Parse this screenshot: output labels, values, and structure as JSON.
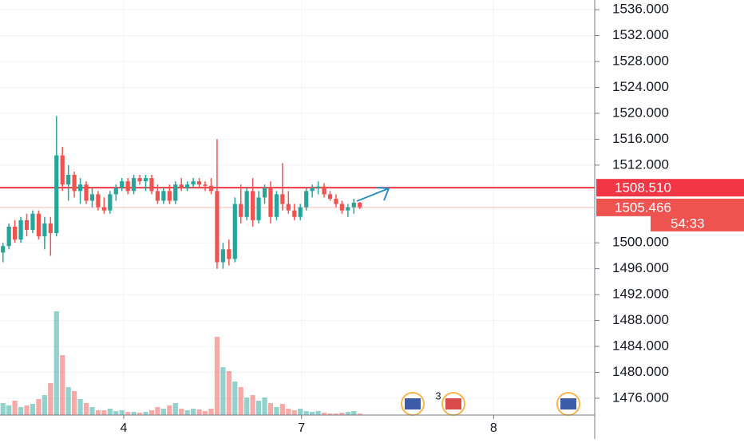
{
  "chart_data": {
    "type": "candlestick",
    "up_color": "#26a69a",
    "down_color": "#ef5350",
    "x": [
      0,
      1,
      2,
      3,
      4,
      5,
      6,
      7,
      8,
      9,
      10,
      11,
      12,
      13,
      14,
      15,
      16,
      17,
      18,
      19,
      20,
      21,
      22,
      23,
      24,
      25,
      26,
      27,
      28,
      29,
      30,
      31,
      32,
      33,
      34,
      35,
      36,
      37,
      38,
      39,
      40,
      41,
      42,
      43,
      44,
      45,
      46,
      47,
      48,
      49,
      50,
      51,
      52,
      53,
      54,
      55,
      56,
      57,
      58,
      59,
      60
    ],
    "open": [
      1498.5,
      1499.5,
      1502.5,
      1500.5,
      1503.5,
      1502,
      1504.5,
      1501,
      1503,
      1501.5,
      1513.5,
      1509,
      1510.5,
      1508,
      1509,
      1506.5,
      1507.5,
      1505.5,
      1505,
      1507.5,
      1508.5,
      1509.5,
      1508,
      1510,
      1509.5,
      1510,
      1508,
      1506.5,
      1508,
      1506.5,
      1509,
      1508.5,
      1509,
      1509.5,
      1509,
      1508.8,
      1508,
      1497,
      1499,
      1497.5,
      1506,
      1504,
      1508,
      1503.5,
      1507,
      1508.5,
      1504,
      1507.5,
      1506,
      1505,
      1504,
      1505.5,
      1508,
      1508.5,
      1508.7,
      1507.5,
      1506.8,
      1506,
      1505,
      1505.5,
      1506.2
    ],
    "high": [
      1500,
      1503,
      1503.5,
      1504,
      1504.5,
      1505,
      1505,
      1504,
      1504,
      1519.6,
      1514.8,
      1512,
      1511,
      1510,
      1509.5,
      1508.5,
      1508,
      1507,
      1508,
      1509,
      1510,
      1510,
      1510.5,
      1510.5,
      1510.5,
      1510.5,
      1509,
      1508.5,
      1509,
      1509.5,
      1510,
      1509.5,
      1510,
      1510,
      1509.5,
      1510,
      1516,
      1500,
      1500.5,
      1507,
      1509,
      1508.5,
      1510,
      1508,
      1509,
      1509.5,
      1508,
      1512.3,
      1508,
      1506,
      1506,
      1508.5,
      1509,
      1509.5,
      1509.2,
      1508,
      1507.5,
      1506.5,
      1506,
      1506.8,
      1506.3
    ],
    "low": [
      1497,
      1499,
      1500,
      1500,
      1501,
      1501.5,
      1500.5,
      1499,
      1498,
      1501,
      1508,
      1506.5,
      1507,
      1506,
      1506,
      1505.5,
      1505,
      1504.5,
      1504.5,
      1506.5,
      1508,
      1507.5,
      1507.5,
      1509,
      1508,
      1507.5,
      1506,
      1506,
      1506,
      1506,
      1508,
      1508,
      1508.5,
      1508.5,
      1508,
      1507.5,
      1496,
      1496,
      1496.5,
      1497,
      1503,
      1503.5,
      1502.5,
      1503,
      1506,
      1503,
      1503.5,
      1505,
      1504.5,
      1503.5,
      1503.5,
      1505,
      1507,
      1507.5,
      1507,
      1506.5,
      1505.5,
      1504.5,
      1504,
      1504.5,
      1505.2
    ],
    "close": [
      1499.5,
      1502.5,
      1500.5,
      1503.5,
      1502,
      1504.5,
      1501,
      1503,
      1501.5,
      1513.5,
      1509,
      1510.5,
      1508,
      1509,
      1506.5,
      1507.5,
      1505.5,
      1505,
      1507.5,
      1508.5,
      1509.5,
      1508,
      1510,
      1509.5,
      1510,
      1508,
      1506.5,
      1508,
      1506.5,
      1509,
      1508.5,
      1509,
      1509.5,
      1509,
      1508.8,
      1508,
      1497,
      1499,
      1497.5,
      1506,
      1504,
      1508,
      1503.5,
      1507,
      1508.5,
      1504,
      1507.5,
      1506,
      1505,
      1504,
      1505.5,
      1508,
      1508.5,
      1508.7,
      1507.5,
      1506.8,
      1506,
      1505,
      1505.5,
      1506.2,
      1505.466
    ],
    "volume": [
      15,
      12,
      18,
      10,
      12,
      14,
      20,
      25,
      40,
      130,
      75,
      35,
      30,
      20,
      15,
      10,
      6,
      6,
      8,
      5,
      6,
      4,
      4,
      3,
      4,
      6,
      10,
      8,
      12,
      15,
      8,
      6,
      8,
      7,
      5,
      8,
      98,
      60,
      55,
      42,
      35,
      22,
      25,
      18,
      22,
      15,
      10,
      14,
      8,
      6,
      8,
      5,
      4,
      5,
      3,
      2,
      2,
      3,
      4,
      5,
      2
    ],
    "volume_lim": [
      0,
      160
    ],
    "xlim": [
      -0.5,
      99.5
    ],
    "xticks": [
      {
        "value": 20.3,
        "label": "4"
      },
      {
        "value": 50.2,
        "label": "7"
      },
      {
        "value": 82.5,
        "label": "8"
      }
    ],
    "ylim": [
      1473.4,
      1537.5
    ],
    "yticks": [
      {
        "value": 1536,
        "label": "1536.000"
      },
      {
        "value": 1532,
        "label": "1532.000"
      },
      {
        "value": 1528,
        "label": "1528.000"
      },
      {
        "value": 1524,
        "label": "1524.000"
      },
      {
        "value": 1520,
        "label": "1520.000"
      },
      {
        "value": 1516,
        "label": "1516.000"
      },
      {
        "value": 1512,
        "label": "1512.000"
      },
      {
        "value": 1500,
        "label": "1500.000"
      },
      {
        "value": 1496,
        "label": "1496.000"
      },
      {
        "value": 1492,
        "label": "1492.000"
      },
      {
        "value": 1488,
        "label": "1488.000"
      },
      {
        "value": 1484,
        "label": "1484.000"
      },
      {
        "value": 1480,
        "label": "1480.000"
      },
      {
        "value": 1476,
        "label": "1476.000"
      }
    ],
    "grid": true,
    "price_lines": [
      {
        "value": 1508.51,
        "label": "1508.510",
        "color": "#f23645"
      },
      {
        "value": 1505.466,
        "label": "1505.466",
        "color": "#ef5350"
      }
    ],
    "countdown": "54:33",
    "event_badge": "3"
  }
}
